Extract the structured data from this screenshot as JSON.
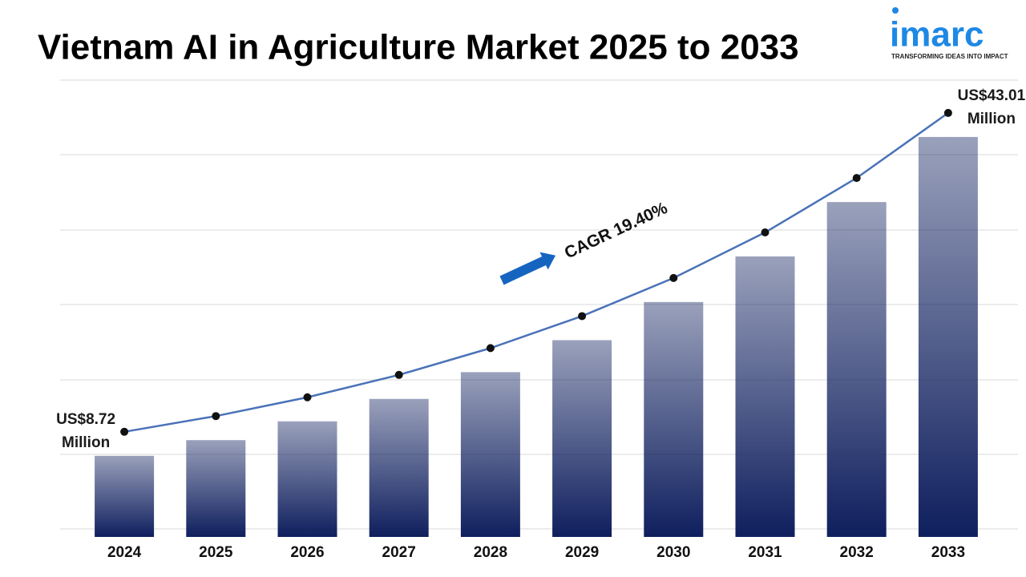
{
  "chart_data": {
    "type": "bar",
    "title": "Vietnam AI in Agriculture Market 2025 to 2033",
    "logo": {
      "name": "imarc",
      "tagline": "TRANSFORMING IDEAS INTO IMPACT"
    },
    "annotation": "CAGR 19.40%",
    "categories": [
      "2024",
      "2025",
      "2026",
      "2027",
      "2028",
      "2029",
      "2030",
      "2031",
      "2032",
      "2033"
    ],
    "values": [
      8.72,
      10.41,
      12.43,
      14.84,
      17.72,
      21.16,
      25.26,
      30.16,
      36.01,
      43.01
    ],
    "value_labels": [
      "US$8.72 Million",
      null,
      null,
      null,
      null,
      null,
      null,
      null,
      null,
      "US$43.01 Million"
    ],
    "color": "#0f1f5e",
    "line_color": "#4a72b8",
    "ylim": [
      0,
      48
    ]
  }
}
